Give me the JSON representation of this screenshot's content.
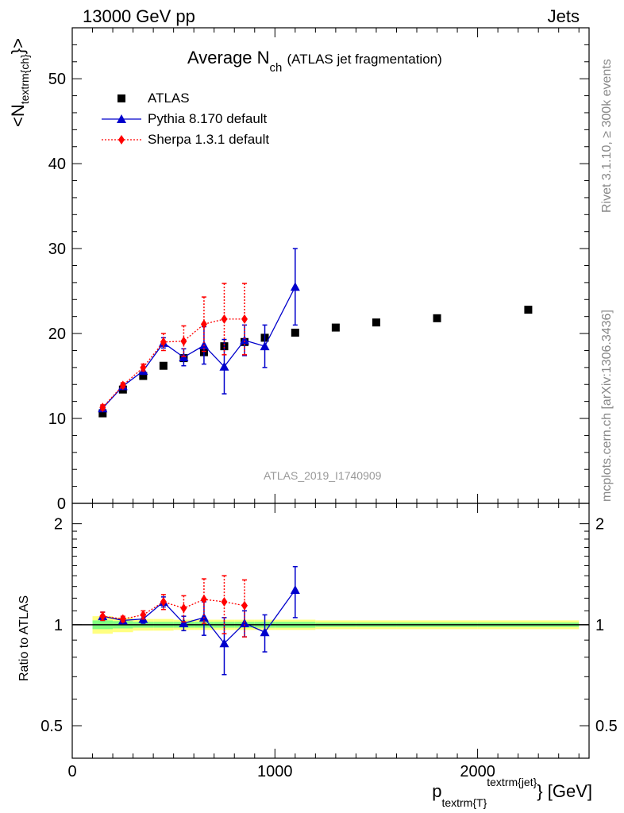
{
  "header": {
    "energy_label": "13000 GeV pp",
    "category_label": "Jets",
    "title_main": "Average N",
    "title_sub": "ch",
    "title_rest": "(ATLAS jet fragmentation)",
    "rivet_label": "Rivet 3.1.10, ≥ 300k events",
    "mcplots_label": "mcplots.cern.ch [arXiv:1306.3436]",
    "analysis_id": "ATLAS_2019_I1740909"
  },
  "axes": {
    "ylabel_top_main": "<N",
    "ylabel_top_sub": "textrm{ch}",
    "ylabel_top_end": "}>",
    "ylabel_bottom": "Ratio to ATLAS",
    "xlabel_p": "p",
    "xlabel_sub": "textrm{T}",
    "xlabel_sup": "textrm{jet}",
    "xlabel_end": "} [GeV]"
  },
  "legend": [
    {
      "label": "ATLAS",
      "color": "#000000",
      "marker": "square"
    },
    {
      "label": "Pythia 8.170 default",
      "color": "#0000cc",
      "marker": "triangle"
    },
    {
      "label": "Sherpa 1.3.1 default",
      "color": "#ff0000",
      "marker": "diamond"
    }
  ],
  "chart_data": [
    {
      "type": "scatter",
      "panel": "main",
      "xlim": [
        0,
        2550
      ],
      "ylim": [
        0,
        56
      ],
      "yticks": [
        "0",
        "10",
        "20",
        "30",
        "40",
        "50"
      ],
      "xticks": [
        "0",
        "1000",
        "2000"
      ],
      "series": [
        {
          "name": "ATLAS",
          "color": "#000000",
          "x": [
            150,
            250,
            350,
            450,
            550,
            650,
            750,
            850,
            950,
            1100,
            1300,
            1500,
            1800,
            2250
          ],
          "y": [
            10.6,
            13.4,
            15.0,
            16.2,
            17.1,
            17.8,
            18.5,
            19.0,
            19.5,
            20.1,
            20.7,
            21.3,
            21.8,
            22.8
          ]
        },
        {
          "name": "Pythia 8.170 default",
          "color": "#0000cc",
          "x": [
            150,
            250,
            350,
            450,
            550,
            650,
            750,
            850,
            950,
            1100
          ],
          "y": [
            11.2,
            13.8,
            15.6,
            18.9,
            17.2,
            18.6,
            16.1,
            19.2,
            18.5,
            25.5
          ],
          "err": [
            0.3,
            0.3,
            0.4,
            0.6,
            1.0,
            2.2,
            3.2,
            1.8,
            2.5,
            4.5
          ]
        },
        {
          "name": "Sherpa 1.3.1 default",
          "color": "#ff0000",
          "x": [
            150,
            250,
            350,
            450,
            550,
            650,
            750,
            850
          ],
          "y": [
            11.3,
            13.9,
            16.0,
            19.0,
            19.1,
            21.1,
            21.7,
            21.7
          ],
          "err": [
            0.3,
            0.3,
            0.4,
            1.0,
            1.8,
            3.2,
            4.2,
            4.2
          ]
        }
      ]
    },
    {
      "type": "scatter",
      "panel": "ratio",
      "xlim": [
        0,
        2550
      ],
      "ylim": [
        0.4,
        2.3
      ],
      "log_y": true,
      "yticks": [
        "0.5",
        "1",
        "2"
      ],
      "reference_line": 1,
      "series": [
        {
          "name": "Pythia 8.170 default",
          "color": "#0000cc",
          "x": [
            150,
            250,
            350,
            450,
            550,
            650,
            750,
            850,
            950,
            1100
          ],
          "y": [
            1.06,
            1.03,
            1.04,
            1.17,
            1.01,
            1.05,
            0.88,
            1.01,
            0.95,
            1.27
          ],
          "err": [
            0.03,
            0.02,
            0.03,
            0.04,
            0.05,
            0.12,
            0.17,
            0.09,
            0.12,
            0.22
          ]
        },
        {
          "name": "Sherpa 1.3.1 default",
          "color": "#ff0000",
          "x": [
            150,
            250,
            350,
            450,
            550,
            650,
            750,
            850
          ],
          "y": [
            1.06,
            1.04,
            1.07,
            1.17,
            1.12,
            1.19,
            1.17,
            1.14
          ],
          "err": [
            0.03,
            0.02,
            0.03,
            0.06,
            0.1,
            0.18,
            0.23,
            0.22
          ]
        }
      ],
      "band": {
        "x": [
          100,
          200,
          300,
          400,
          500,
          600,
          700,
          800,
          900,
          1000,
          1200,
          1400,
          1600,
          2000,
          2500
        ],
        "yellow_half_width": [
          0.06,
          0.05,
          0.04,
          0.04,
          0.035,
          0.035,
          0.035,
          0.035,
          0.035,
          0.035,
          0.03,
          0.03,
          0.03,
          0.03
        ],
        "green_half_width": [
          0.03,
          0.025,
          0.02,
          0.02,
          0.02,
          0.02,
          0.02,
          0.02,
          0.02,
          0.02,
          0.015,
          0.015,
          0.015,
          0.015
        ],
        "yellow": "#ffff80",
        "green": "#80ff80"
      }
    }
  ]
}
